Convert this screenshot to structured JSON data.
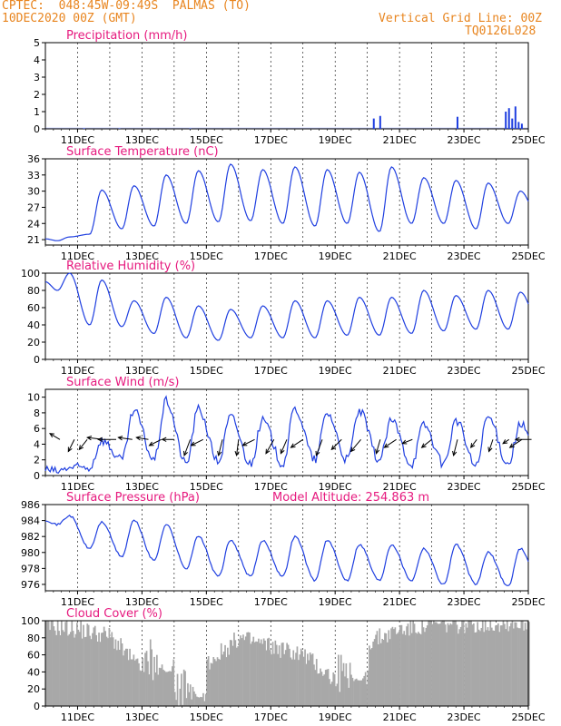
{
  "header": {
    "station": "CPTEC:  048:45W-09:49S  PALMAS (TO)",
    "date": "10DEC2020 00Z (GMT)",
    "grid_note": "Vertical Grid Line: 00Z",
    "code": "TQ0126L028"
  },
  "x_ticks": [
    "11DEC",
    "13DEC",
    "15DEC",
    "17DEC",
    "19DEC",
    "21DEC",
    "23DEC",
    "25DEC"
  ],
  "model_altitude": "Model Altitude: 254.863 m",
  "colors": {
    "title": "#e6197e",
    "header": "#e8851f",
    "line": "#1f3fe0",
    "cloud": "#a8a8a8",
    "arrow": "#000000"
  },
  "chart_data": [
    {
      "type": "bar",
      "title": "Precipitation (mm/h)",
      "ylim": [
        0,
        5
      ],
      "yticks": [
        0,
        1,
        2,
        3,
        4,
        5
      ],
      "x_unit": "days since 10DEC2020 00Z",
      "bars": [
        [
          1.2,
          0.03
        ],
        [
          2.3,
          0.02
        ],
        [
          4.5,
          0.02
        ],
        [
          10.2,
          0.6
        ],
        [
          10.4,
          0.75
        ],
        [
          12.8,
          0.7
        ],
        [
          14.3,
          1.0
        ],
        [
          14.4,
          1.2
        ],
        [
          14.5,
          0.6
        ],
        [
          14.6,
          1.3
        ],
        [
          14.7,
          0.4
        ],
        [
          14.8,
          0.3
        ]
      ]
    },
    {
      "type": "line",
      "title": "Surface Temperature (nC)",
      "ylim": [
        20,
        36
      ],
      "yticks": [
        21,
        24,
        27,
        30,
        33,
        36
      ],
      "daily_max": [
        21.5,
        30.2,
        31.0,
        33.0,
        33.8,
        35.0,
        34.0,
        34.5,
        34.0,
        33.5,
        34.5,
        32.5,
        32.0,
        31.5,
        30.0,
        31.0
      ],
      "daily_min": [
        20.8,
        22.0,
        23.0,
        23.5,
        24.0,
        24.3,
        24.5,
        24.0,
        23.5,
        24.0,
        22.5,
        24.0,
        24.0,
        23.0,
        24.0,
        24.5
      ]
    },
    {
      "type": "line",
      "title": "Relative Humidity (%)",
      "ylim": [
        0,
        100
      ],
      "yticks": [
        0,
        20,
        40,
        60,
        80,
        100
      ],
      "daily_max": [
        100,
        92,
        68,
        72,
        62,
        58,
        62,
        68,
        68,
        72,
        72,
        80,
        74,
        80,
        78,
        70
      ],
      "daily_min": [
        80,
        40,
        38,
        30,
        25,
        22,
        25,
        25,
        25,
        28,
        28,
        30,
        33,
        35,
        35,
        38
      ]
    },
    {
      "type": "line",
      "title": "Surface Wind (m/s)",
      "ylim": [
        0,
        11
      ],
      "yticks": [
        0,
        2,
        4,
        6,
        8,
        10
      ],
      "daily_max": [
        1.0,
        4.5,
        8.2,
        9.5,
        8.5,
        7.5,
        7.0,
        8.5,
        8.0,
        8.2,
        7.0,
        6.5,
        7.0,
        7.5,
        6.5,
        5.0
      ],
      "daily_min": [
        0.5,
        1.0,
        2.0,
        2.0,
        1.5,
        1.8,
        1.5,
        1.5,
        2.0,
        2.0,
        2.0,
        1.5,
        1.5,
        1.2,
        1.5,
        2.5
      ],
      "arrows": [
        {
          "x": 0.45,
          "u": -0.5,
          "v": 0.3
        },
        {
          "x": 0.9,
          "u": -0.3,
          "v": -0.6
        },
        {
          "x": 1.3,
          "u": -0.4,
          "v": -0.5
        },
        {
          "x": 1.8,
          "u": -0.8,
          "v": 0.1
        },
        {
          "x": 2.2,
          "u": -0.9,
          "v": 0.0
        },
        {
          "x": 2.7,
          "u": -0.7,
          "v": 0.1
        },
        {
          "x": 3.2,
          "u": -0.6,
          "v": 0.1
        },
        {
          "x": 3.6,
          "u": -0.6,
          "v": -0.3
        },
        {
          "x": 4.0,
          "u": -0.6,
          "v": 0.0
        },
        {
          "x": 4.5,
          "u": -0.3,
          "v": -0.8
        },
        {
          "x": 4.9,
          "u": -0.6,
          "v": -0.3
        },
        {
          "x": 5.5,
          "u": -0.2,
          "v": -0.8
        },
        {
          "x": 6.0,
          "u": -0.1,
          "v": -0.8
        },
        {
          "x": 6.5,
          "u": -0.6,
          "v": -0.3
        },
        {
          "x": 7.1,
          "u": -0.4,
          "v": -0.7
        },
        {
          "x": 7.5,
          "u": -0.3,
          "v": -0.7
        },
        {
          "x": 8.0,
          "u": -0.6,
          "v": -0.4
        },
        {
          "x": 8.6,
          "u": -0.3,
          "v": -0.8
        },
        {
          "x": 9.2,
          "u": -0.5,
          "v": -0.5
        },
        {
          "x": 9.8,
          "u": -0.5,
          "v": -0.6
        },
        {
          "x": 10.4,
          "u": -0.2,
          "v": -0.7
        },
        {
          "x": 10.9,
          "u": -0.6,
          "v": -0.4
        },
        {
          "x": 11.4,
          "u": -0.5,
          "v": -0.2
        },
        {
          "x": 12.0,
          "u": -0.5,
          "v": -0.4
        },
        {
          "x": 12.8,
          "u": -0.2,
          "v": -0.8
        },
        {
          "x": 13.4,
          "u": -0.3,
          "v": -0.4
        },
        {
          "x": 13.9,
          "u": -0.2,
          "v": -0.6
        },
        {
          "x": 14.4,
          "u": -0.3,
          "v": -0.2
        },
        {
          "x": 14.8,
          "u": -0.6,
          "v": -0.4
        },
        {
          "x": 15.1,
          "u": -0.8,
          "v": 0.0
        }
      ]
    },
    {
      "type": "line",
      "title": "Surface Pressure (hPa)",
      "ylim": [
        975.2,
        986
      ],
      "yticks": [
        976,
        978,
        980,
        982,
        984,
        986
      ],
      "daily_max": [
        984.6,
        983.8,
        984.0,
        983.5,
        982.0,
        981.5,
        981.5,
        982.0,
        981.5,
        981.0,
        981.0,
        980.5,
        981.0,
        980.0,
        980.5,
        980.0
      ],
      "daily_min": [
        983.5,
        980.5,
        979.5,
        979.0,
        978.0,
        977.0,
        977.0,
        977.0,
        976.5,
        976.5,
        976.5,
        976.5,
        976.0,
        976.0,
        975.8,
        975.8
      ]
    },
    {
      "type": "area",
      "title": "Cloud Cover (%)",
      "ylim": [
        0,
        100
      ],
      "yticks": [
        0,
        20,
        40,
        60,
        80,
        100
      ],
      "daily_level": [
        94,
        90,
        82,
        40,
        10,
        50,
        80,
        70,
        60,
        30,
        75,
        90,
        95,
        96,
        97,
        98
      ]
    }
  ]
}
